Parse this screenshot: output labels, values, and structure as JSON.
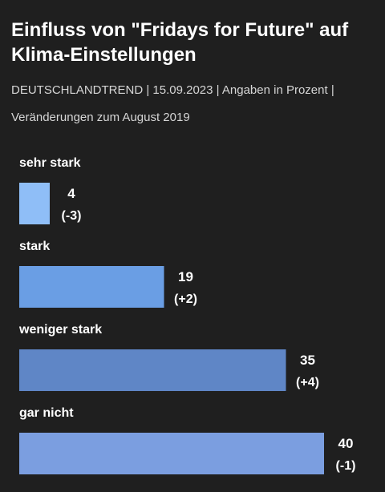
{
  "chart_data": {
    "type": "bar",
    "orientation": "horizontal",
    "title": "Einfluss von \"Fridays for Future\" auf Klima-Einstellungen",
    "subtitle": "DEUTSCHLANDTREND | 15.09.2023 | Angaben in Prozent | Veränderungen zum August 2019",
    "categories": [
      "sehr stark",
      "stark",
      "weniger stark",
      "gar nicht"
    ],
    "values": [
      4,
      19,
      35,
      40
    ],
    "changes": [
      "(-3)",
      "(+2)",
      "(+4)",
      "(-1)"
    ],
    "colors": [
      "#8fbef7",
      "#6a9ee4",
      "#5f86c6",
      "#7b9ee0"
    ],
    "xlim": [
      0,
      40
    ],
    "grid": false,
    "legend": "none"
  }
}
